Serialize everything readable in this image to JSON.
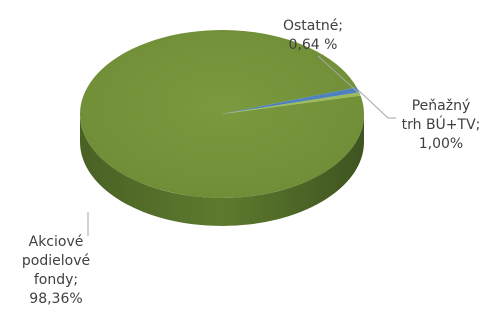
{
  "chart_data": {
    "type": "pie",
    "style": "3d",
    "title": "",
    "legend": "none",
    "slices": [
      {
        "name": "Akciové podielové fondy",
        "value": 98.36,
        "label_lines": [
          "Akciové",
          "podielové",
          "fondy;",
          "98,36%"
        ],
        "color": "#76923c"
      },
      {
        "name": "Peňažný trh BÚ+TV",
        "value": 1.0,
        "label_lines": [
          "Peňažný",
          "trh BÚ+TV;",
          "1,00%"
        ],
        "color": "#4f81bd"
      },
      {
        "name": "Ostatné",
        "value": 0.64,
        "label_lines": [
          "Ostatné;",
          "0,64 %"
        ],
        "color": "#9bbb59"
      }
    ]
  }
}
